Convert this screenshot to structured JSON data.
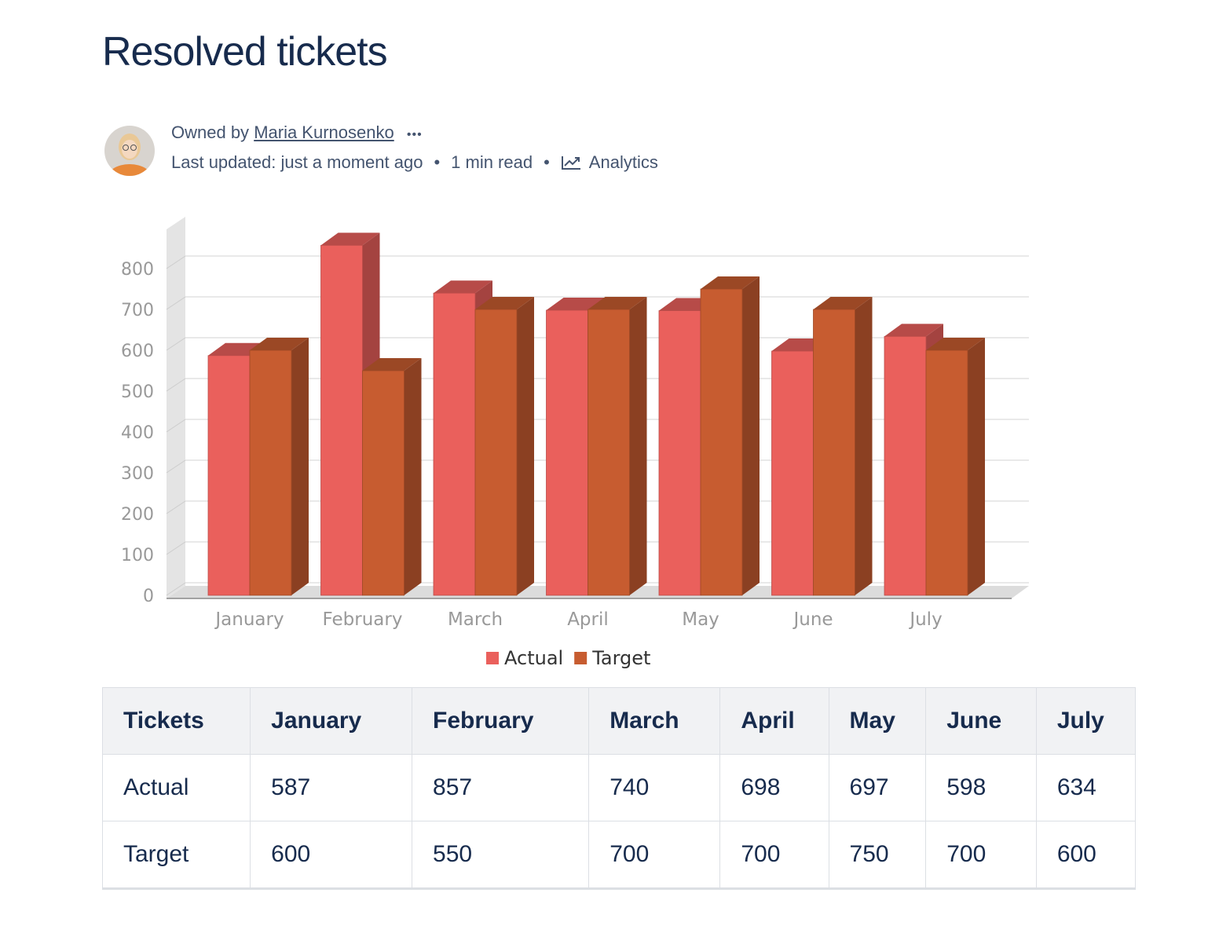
{
  "page": {
    "title": "Resolved tickets",
    "byline": {
      "owned_by": "Owned by",
      "owner": "Maria Kurnosenko",
      "more": "•••",
      "updated": "Last updated: just a moment ago",
      "read_time": "1 min read",
      "analytics": "Analytics"
    }
  },
  "chart_data": {
    "type": "bar3d",
    "categories": [
      "January",
      "February",
      "March",
      "April",
      "May",
      "June",
      "July"
    ],
    "series": [
      {
        "name": "Actual",
        "color": "#ea605c",
        "values": [
          587,
          857,
          740,
          698,
          697,
          598,
          634
        ]
      },
      {
        "name": "Target",
        "color": "#c75c30",
        "values": [
          600,
          550,
          700,
          700,
          750,
          700,
          600
        ]
      }
    ],
    "ylim": [
      0,
      900
    ],
    "yticks": [
      0,
      100,
      200,
      300,
      400,
      500,
      600,
      700,
      800
    ],
    "grid": true,
    "legend": "bottom"
  },
  "table": {
    "header": [
      "Tickets",
      "January",
      "February",
      "March",
      "April",
      "May",
      "June",
      "July"
    ],
    "rows": [
      [
        "Actual",
        587,
        857,
        740,
        698,
        697,
        598,
        634
      ],
      [
        "Target",
        600,
        550,
        700,
        700,
        750,
        700,
        600
      ]
    ]
  }
}
